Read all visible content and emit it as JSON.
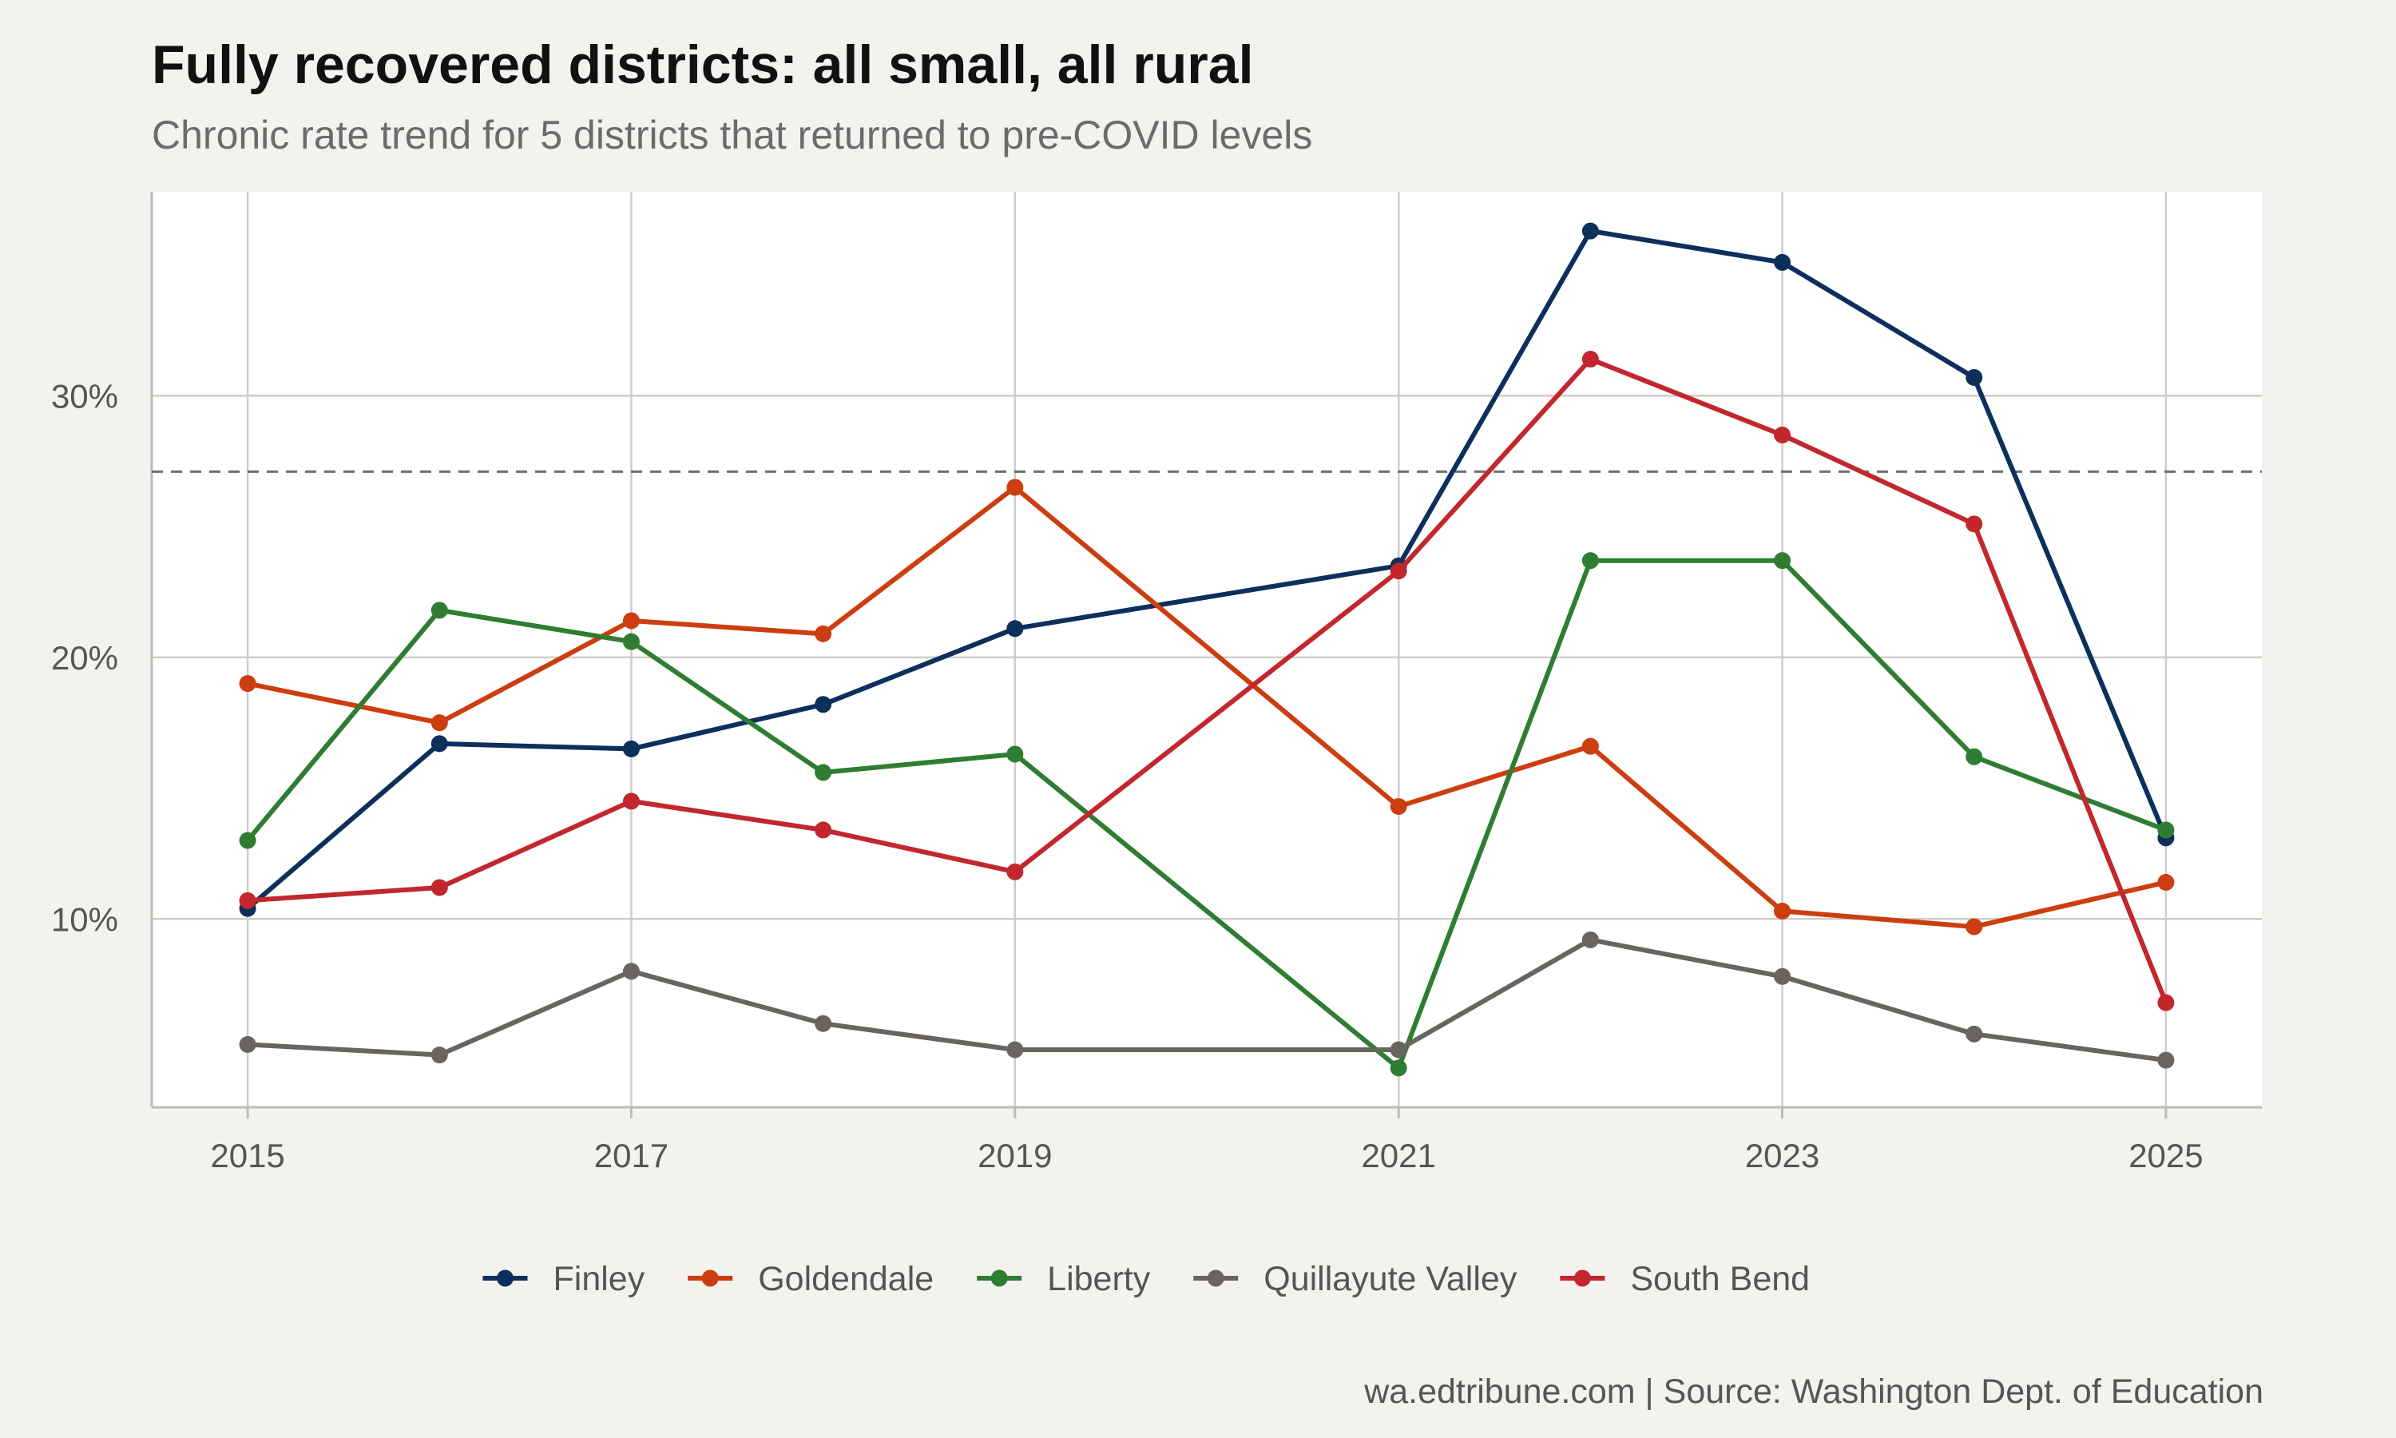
{
  "title": "Fully recovered districts: all small, all rural",
  "subtitle": "Chronic rate trend for 5 districts that returned to pre-COVID levels",
  "caption": "wa.edtribune.com | Source: Washington Dept. of Education",
  "chart_data": {
    "type": "line",
    "x": [
      2015,
      2016,
      2017,
      2018,
      2019,
      2021,
      2022,
      2023,
      2024,
      2025
    ],
    "x_ticks": [
      2015,
      2017,
      2019,
      2021,
      2023,
      2025
    ],
    "x_tick_labels": [
      "2015",
      "2017",
      "2019",
      "2021",
      "2023",
      "2025"
    ],
    "xlim": [
      2014.5,
      2025.5
    ],
    "y_ticks": [
      10,
      20,
      30
    ],
    "y_tick_labels": [
      "10%",
      "20%",
      "30%"
    ],
    "ylim": [
      2.8,
      37.8
    ],
    "reference_line": 27.1,
    "grid": true,
    "legend_position": "bottom",
    "series": [
      {
        "name": "Finley",
        "color": "#0d2f5c",
        "values": [
          10.4,
          16.7,
          16.5,
          18.2,
          21.1,
          23.5,
          36.3,
          35.1,
          30.7,
          13.1
        ]
      },
      {
        "name": "Goldendale",
        "color": "#cc3d0f",
        "values": [
          19.0,
          17.5,
          21.4,
          20.9,
          26.5,
          14.3,
          16.6,
          10.3,
          9.7,
          11.4
        ]
      },
      {
        "name": "Liberty",
        "color": "#2e7d32",
        "values": [
          13.0,
          21.8,
          20.6,
          15.6,
          16.3,
          4.3,
          23.7,
          23.7,
          16.2,
          13.4
        ]
      },
      {
        "name": "Quillayute Valley",
        "color": "#686460",
        "values": [
          5.2,
          4.8,
          8.0,
          6.0,
          5.0,
          5.0,
          9.2,
          7.8,
          5.6,
          4.6
        ]
      },
      {
        "name": "South Bend",
        "color": "#c1272d",
        "values": [
          10.7,
          11.2,
          14.5,
          13.4,
          11.8,
          23.3,
          31.4,
          28.5,
          25.1,
          6.8
        ]
      }
    ]
  }
}
